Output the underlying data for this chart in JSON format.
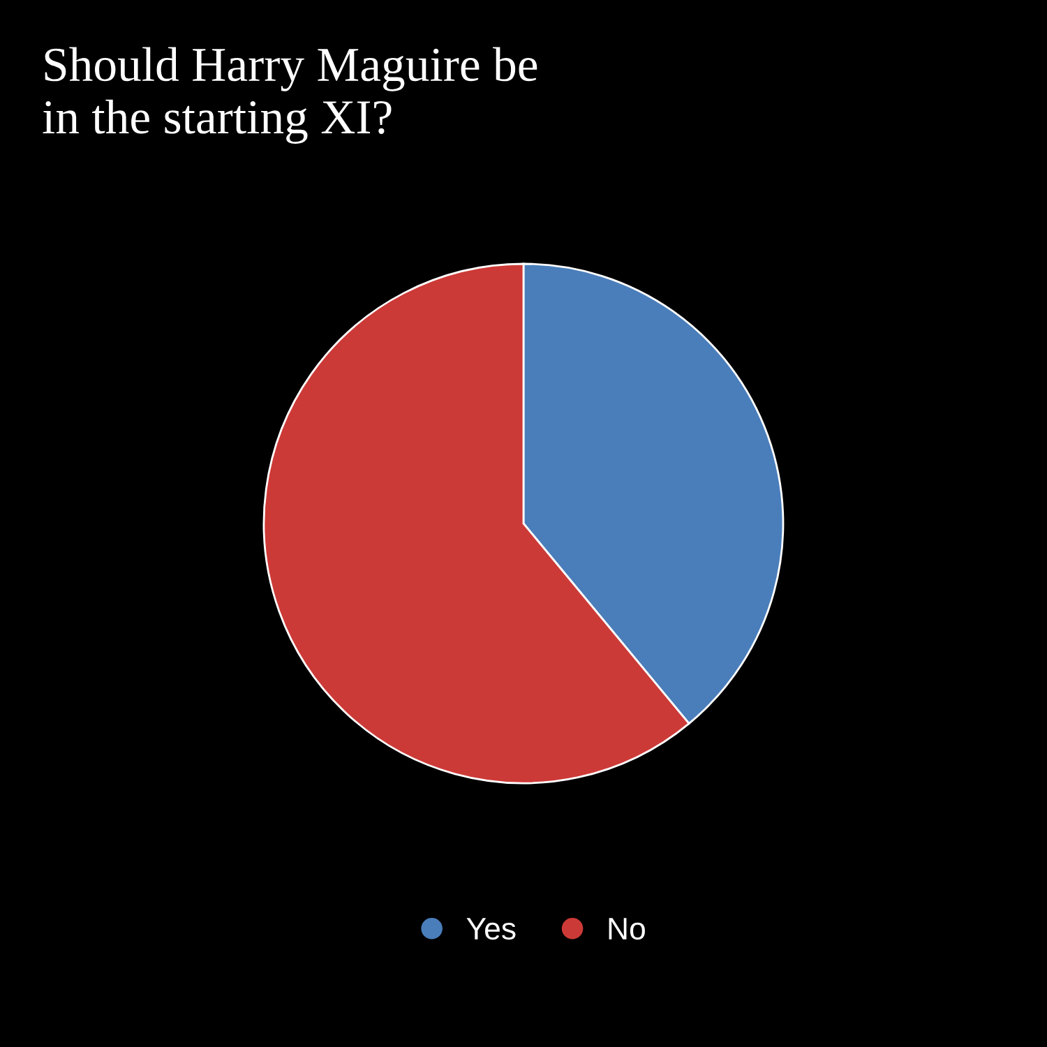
{
  "chart_data": {
    "type": "pie",
    "title": "Should Harry Maguire be\nin the starting XI?",
    "categories": [
      "Yes",
      "No"
    ],
    "values": [
      39,
      61
    ],
    "colors": [
      "#4a7ebb",
      "#cc3a37"
    ],
    "legend": "bottom"
  }
}
